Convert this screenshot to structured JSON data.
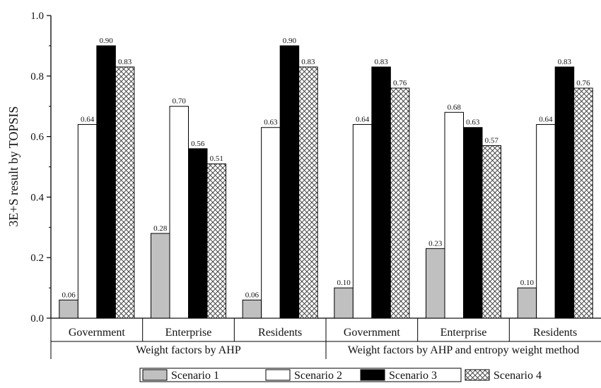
{
  "chart_data": {
    "type": "bar",
    "ylabel": "3E+S result by TOPSIS",
    "ylim": [
      0,
      1.0
    ],
    "yticks": [
      "0.0",
      "0.2",
      "0.4",
      "0.6",
      "0.8",
      "1.0"
    ],
    "grid": false,
    "legend_position": "bottom",
    "groups": [
      {
        "label": "Weight factors by AHP",
        "categories": [
          "Government",
          "Enterprise",
          "Residents"
        ]
      },
      {
        "label": "Weight factors by AHP and entropy weight method",
        "categories": [
          "Government",
          "Enterprise",
          "Residents"
        ]
      }
    ],
    "categories": [
      "Government",
      "Enterprise",
      "Residents",
      "Government",
      "Enterprise",
      "Residents"
    ],
    "series": [
      {
        "name": "Scenario 1",
        "values": [
          0.06,
          0.28,
          0.06,
          0.1,
          0.23,
          0.1
        ],
        "labels": [
          "0.06",
          "0.28",
          "0.06",
          "0.10",
          "0.23",
          "0.10"
        ],
        "fill": "#c0c0c0"
      },
      {
        "name": "Scenario 2",
        "values": [
          0.64,
          0.7,
          0.63,
          0.64,
          0.68,
          0.64
        ],
        "labels": [
          "0.64",
          "0.70",
          "0.63",
          "0.64",
          "0.68",
          "0.64"
        ],
        "fill": "#ffffff"
      },
      {
        "name": "Scenario 3",
        "values": [
          0.9,
          0.56,
          0.9,
          0.83,
          0.63,
          0.83
        ],
        "labels": [
          "0.90",
          "0.56",
          "0.90",
          "0.83",
          "0.63",
          "0.83"
        ],
        "fill": "#000000"
      },
      {
        "name": "Scenario 4",
        "values": [
          0.83,
          0.51,
          0.83,
          0.76,
          0.57,
          0.76
        ],
        "labels": [
          "0.83",
          "0.51",
          "0.83",
          "0.76",
          "0.57",
          "0.76"
        ],
        "fill": "crosshatch"
      }
    ]
  }
}
